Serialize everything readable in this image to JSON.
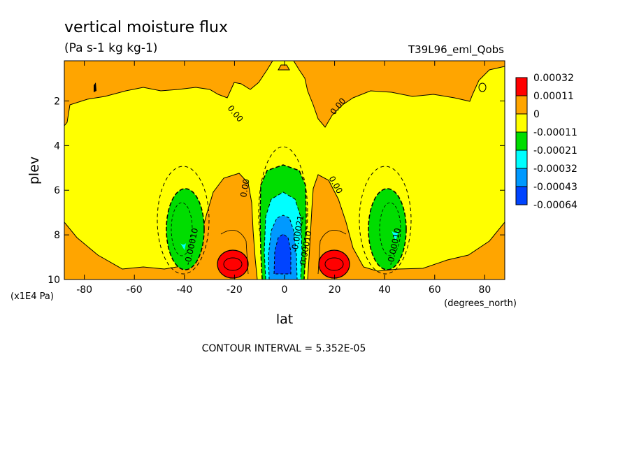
{
  "chart_data": {
    "type": "heatmap",
    "title": "vertical moisture flux",
    "subtitle": "(Pa s-1 kg kg-1)",
    "dataset_label": "T39L96_eml_Qobs",
    "xlabel": "lat",
    "x_units": "(degrees_north)",
    "ylabel": "plev",
    "y_units": "(x1E4 Pa)",
    "footer": "CONTOUR INTERVAL = 5.352E-05",
    "xlim": [
      -88,
      88
    ],
    "ylim": [
      10,
      0.2
    ],
    "x_ticks": [
      -80,
      -60,
      -40,
      -20,
      0,
      20,
      40,
      60,
      80
    ],
    "x_tick_labels": [
      "-80",
      "-60",
      "-40",
      "-20",
      "0",
      "20",
      "40",
      "60",
      "80"
    ],
    "y_ticks": [
      2,
      4,
      6,
      8,
      10
    ],
    "y_tick_labels": [
      "2",
      "4",
      "6",
      "8",
      "10"
    ],
    "legend": {
      "placement": "right",
      "labels": [
        "0.00032",
        "0.00011",
        "0",
        "-0.00011",
        "-0.00021",
        "-0.00032",
        "-0.00043",
        "-0.00064"
      ],
      "colors": [
        "#ff0000",
        "#ffa500",
        "#ffff00",
        "#00dd00",
        "#00ffff",
        "#0099ff",
        "#0044ff"
      ]
    },
    "contour_labels": [
      "0.00",
      "0.00",
      "0.00",
      "0.00",
      "-0.00010",
      "-0.00010",
      "0.00010",
      "-0.00021"
    ],
    "colors": {
      "background_field": "#ffff00",
      "positive": "#ffa500",
      "strong_positive": "#ff0000",
      "negative": "#00dd00",
      "more_negative": "#00ffff",
      "strong_negative": "#0099ff",
      "extreme_negative": "#0044ff"
    }
  }
}
